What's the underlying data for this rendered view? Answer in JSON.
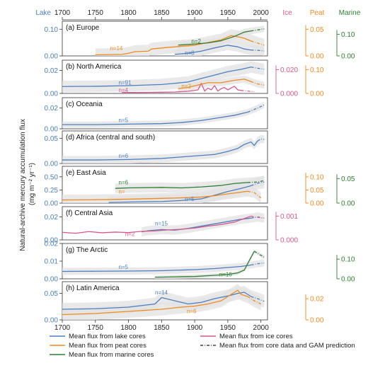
{
  "figure": {
    "top_axis": {
      "ticks": [
        "1700",
        "1750",
        "1800",
        "1850",
        "1900",
        "1950",
        "2000"
      ]
    },
    "bottom_axis": {
      "ticks": [
        "1700",
        "1750",
        "1800",
        "1850",
        "1900",
        "1950",
        "2000"
      ]
    },
    "header": {
      "lake": "Lake",
      "ice": "Ice",
      "peat": "Peat",
      "marine": "Marine"
    },
    "ylabel_line1": "Natural-archive mercury accumulation flux",
    "ylabel_line2": "(mg m⁻² yr⁻¹)",
    "colors": {
      "lake": "#4a7fbf",
      "peat": "#f08a1c",
      "marine": "#2e7d32",
      "ice": "#d9578a",
      "band": "#e2e2e2",
      "axis_lake": "#4a7fbf"
    },
    "legend": [
      {
        "id": "lake",
        "label": "Mean flux from lake cores",
        "color": "#4a7fbf",
        "style": "solid"
      },
      {
        "id": "ice",
        "label": "Mean flux from ice cores",
        "color": "#d9578a",
        "style": "solid"
      },
      {
        "id": "peat",
        "label": "Mean flux from peat cores",
        "color": "#f08a1c",
        "style": "solid"
      },
      {
        "id": "gam",
        "label": "Mean flux from core data and GAM prediction",
        "color": "#444444",
        "style": "dashdot"
      },
      {
        "id": "marine",
        "label": "Mean flux from marine cores",
        "color": "#2e7d32",
        "style": "solid"
      }
    ]
  },
  "chart_data": [
    {
      "type": "line",
      "title": "(a) Europe",
      "xlim": [
        1700,
        2010
      ],
      "lake_axis": {
        "ylim": [
          0,
          0.13
        ],
        "ticks": [
          "0.00",
          "0.10"
        ],
        "tick_values": [
          0,
          0.1
        ]
      },
      "right_axes": [
        {
          "archive": "peat",
          "ylim": [
            0,
            0.065
          ],
          "ticks": [
            "0.00",
            "0.05"
          ],
          "tick_values": [
            0,
            0.05
          ]
        },
        {
          "archive": "marine",
          "ylim": [
            0,
            0.16
          ],
          "ticks": [
            "0.00",
            "0.10"
          ],
          "tick_values": [
            0,
            0.1
          ]
        }
      ],
      "annotations": [
        {
          "text": "n=14",
          "archive": "peat",
          "x": 1772,
          "y": 0.021
        },
        {
          "text": "n=2",
          "archive": "marine",
          "x": 1895,
          "y": 0.048
        },
        {
          "text": "n=8",
          "archive": "lake",
          "x": 1885,
          "y": 0.004
        }
      ],
      "series": [
        {
          "archive": "lake",
          "x": [
            1870,
            1890,
            1910,
            1930,
            1950,
            1965,
            1975,
            1985,
            1995,
            2005
          ],
          "y": [
            0.006,
            0.01,
            0.018,
            0.03,
            0.04,
            0.034,
            0.026,
            0.022,
            0.021,
            0.018
          ],
          "band": 0.018
        },
        {
          "archive": "peat",
          "x": [
            1750,
            1790,
            1800,
            1810,
            1830,
            1835,
            1860,
            1880,
            1900,
            1920,
            1940,
            1955,
            1965,
            1975,
            1985,
            1995,
            2005
          ],
          "y": [
            0.002,
            0.003,
            0.005,
            0.008,
            0.009,
            0.013,
            0.016,
            0.018,
            0.02,
            0.025,
            0.03,
            0.038,
            0.036,
            0.033,
            0.028,
            0.024,
            0.02
          ],
          "band": 0.012
        },
        {
          "archive": "marine",
          "x": [
            1875,
            1900,
            1920,
            1940,
            1960,
            1975,
            1985,
            1995,
            2005
          ],
          "y": [
            0.05,
            0.055,
            0.06,
            0.07,
            0.09,
            0.11,
            0.115,
            0.12,
            0.125
          ],
          "band": 0.015
        }
      ]
    },
    {
      "type": "line",
      "title": "(b) North America",
      "xlim": [
        1700,
        2010
      ],
      "lake_axis": {
        "ylim": [
          0,
          0.029
        ],
        "ticks": [
          "0.00",
          "0.02"
        ],
        "tick_values": [
          0,
          0.02
        ]
      },
      "right_axes": [
        {
          "archive": "ice",
          "ylim": [
            0,
            0.028
          ],
          "ticks": [
            "0.000",
            "0.020"
          ],
          "tick_values": [
            0,
            0.02
          ]
        },
        {
          "archive": "peat",
          "ylim": [
            0,
            0.14
          ],
          "ticks": [
            "0.00",
            "0.10"
          ],
          "tick_values": [
            0,
            0.1
          ]
        }
      ],
      "annotations": [
        {
          "text": "n=91",
          "archive": "lake",
          "x": 1785,
          "y": 0.0078
        },
        {
          "text": "n=4",
          "archive": "ice",
          "x": 1785,
          "y": 0.0012
        },
        {
          "text": "n=2",
          "archive": "peat",
          "x": 1880,
          "y": 0.0046
        }
      ],
      "series": [
        {
          "archive": "lake",
          "x": [
            1700,
            1750,
            1800,
            1850,
            1870,
            1890,
            1910,
            1930,
            1950,
            1970,
            1985,
            1995,
            2005
          ],
          "y": [
            0.006,
            0.0062,
            0.0068,
            0.0078,
            0.0088,
            0.01,
            0.013,
            0.016,
            0.019,
            0.021,
            0.023,
            0.022,
            0.021
          ],
          "band": 0.005
        },
        {
          "archive": "ice",
          "x": [
            1790,
            1810,
            1830,
            1850,
            1870,
            1890,
            1905,
            1910,
            1915,
            1920,
            1925,
            1930,
            1935,
            1940,
            1945,
            1950,
            1955,
            1960,
            1965,
            1970,
            1980,
            1990
          ],
          "y": [
            0.0008,
            0.0008,
            0.0009,
            0.001,
            0.0012,
            0.0018,
            0.003,
            0.0085,
            0.002,
            0.0045,
            0.003,
            0.0065,
            0.002,
            0.004,
            0.005,
            0.003,
            0.0045,
            0.006,
            0.003,
            0.0025,
            0.002,
            0.0015
          ],
          "band": 0
        },
        {
          "archive": "peat",
          "x": [
            1875,
            1890,
            1900,
            1920,
            1940,
            1960,
            1975,
            1985,
            1995,
            2005
          ],
          "y": [
            0.02,
            0.025,
            0.032,
            0.045,
            0.045,
            0.055,
            0.06,
            0.05,
            0.04,
            0.035
          ],
          "band": 0.015
        }
      ]
    },
    {
      "type": "line",
      "title": "(c) Oceania",
      "xlim": [
        1700,
        2010
      ],
      "lake_axis": {
        "ylim": [
          0,
          0.03
        ],
        "ticks": [
          "0.00",
          "0.02"
        ],
        "tick_values": [
          0,
          0.02
        ]
      },
      "right_axes": [],
      "annotations": [
        {
          "text": "n=5",
          "archive": "lake",
          "x": 1785,
          "y": 0.0065
        }
      ],
      "series": [
        {
          "archive": "lake",
          "x": [
            1700,
            1750,
            1800,
            1850,
            1880,
            1910,
            1940,
            1960,
            1980,
            1995,
            2005
          ],
          "y": [
            0.004,
            0.004,
            0.0045,
            0.005,
            0.006,
            0.008,
            0.011,
            0.013,
            0.016,
            0.02,
            0.023
          ],
          "band": 0.003
        }
      ]
    },
    {
      "type": "line",
      "title": "(d) Africa (central and south)",
      "xlim": [
        1700,
        2010
      ],
      "lake_axis": {
        "ylim": [
          0,
          0.065
        ],
        "ticks": [
          "0.00",
          "0.05"
        ],
        "tick_values": [
          0,
          0.05
        ]
      },
      "right_axes": [],
      "annotations": [
        {
          "text": "n=6",
          "archive": "lake",
          "x": 1785,
          "y": 0.011
        }
      ],
      "series": [
        {
          "archive": "lake",
          "x": [
            1700,
            1750,
            1800,
            1850,
            1900,
            1930,
            1950,
            1965,
            1975,
            1985,
            1990,
            1995,
            2000,
            2005
          ],
          "y": [
            0.007,
            0.007,
            0.008,
            0.01,
            0.015,
            0.018,
            0.024,
            0.03,
            0.038,
            0.043,
            0.036,
            0.045,
            0.049,
            0.048
          ],
          "band": 0.008
        }
      ]
    },
    {
      "type": "line",
      "title": "(e) East Asia",
      "xlim": [
        1700,
        2010
      ],
      "lake_axis": {
        "ylim": [
          0,
          0.7
        ],
        "ticks": [
          "0.00",
          "0.25",
          "0.50"
        ],
        "tick_values": [
          0,
          0.25,
          0.5
        ]
      },
      "right_axes": [
        {
          "archive": "peat",
          "ylim": [
            0,
            0.14
          ],
          "ticks": [
            "0.00",
            "0.05",
            "0.10"
          ],
          "tick_values": [
            0,
            0.05,
            0.1
          ]
        },
        {
          "archive": "marine",
          "ylim": [
            0,
            0.075
          ],
          "ticks": [
            "0.00",
            "0.05"
          ],
          "tick_values": [
            0,
            0.05
          ]
        }
      ],
      "annotations": [
        {
          "text": "n=6",
          "archive": "marine",
          "x": 1785,
          "y": 0.36
        },
        {
          "text": "n=",
          "archive": "peat",
          "x": 1785,
          "y": 0.18
        },
        {
          "text": "n=5",
          "archive": "lake",
          "x": 1885,
          "y": 0.04
        }
      ],
      "series": [
        {
          "archive": "lake",
          "x": [
            1770,
            1800,
            1850,
            1880,
            1910,
            1930,
            1950,
            1970,
            1985,
            1995,
            2005
          ],
          "y": [
            0.01,
            0.02,
            0.03,
            0.05,
            0.08,
            0.15,
            0.22,
            0.28,
            0.33,
            0.38,
            0.4
          ],
          "band": 0.12
        },
        {
          "archive": "peat",
          "x": [
            1700,
            1750,
            1800,
            1850,
            1880,
            1910,
            1930,
            1950,
            1965,
            1980,
            1990,
            2000
          ],
          "y": [
            0.012,
            0.013,
            0.015,
            0.018,
            0.02,
            0.023,
            0.028,
            0.035,
            0.04,
            0.045,
            0.04,
            0.02
          ],
          "band": 0.02
        },
        {
          "archive": "marine",
          "x": [
            1780,
            1800,
            1850,
            1880,
            1910,
            1940,
            1960,
            1980,
            1995,
            2005
          ],
          "y": [
            0.03,
            0.031,
            0.032,
            0.031,
            0.033,
            0.036,
            0.04,
            0.042,
            0.043,
            0.046
          ],
          "band": 0.01
        }
      ]
    },
    {
      "type": "line",
      "title": "(f) Central Asia",
      "xlim": [
        1700,
        2010
      ],
      "lake_axis": {
        "ylim": [
          0,
          0.029
        ],
        "ticks": [
          "0.00",
          "0.02"
        ],
        "tick_values": [
          0,
          0.02
        ]
      },
      "right_axes": [
        {
          "archive": "ice",
          "ylim": [
            0,
            0.0014
          ],
          "ticks": [
            "0.000",
            "0.001"
          ],
          "tick_values": [
            0,
            0.001
          ]
        }
      ],
      "annotations": [
        {
          "text": "n=15",
          "archive": "lake",
          "x": 1840,
          "y": 0.0125
        },
        {
          "text": "n=2",
          "archive": "ice",
          "x": 1795,
          "y": 0.0035
        }
      ],
      "series": [
        {
          "archive": "lake",
          "x": [
            1820,
            1830,
            1850,
            1870,
            1890,
            1910,
            1930,
            1950,
            1970,
            1985,
            1995,
            2005
          ],
          "y": [
            0.007,
            0.008,
            0.009,
            0.0085,
            0.01,
            0.012,
            0.014,
            0.016,
            0.018,
            0.019,
            0.02,
            0.019
          ],
          "band": 0.004
        },
        {
          "archive": "ice",
          "x": [
            1700,
            1720,
            1740,
            1760,
            1780,
            1800,
            1820,
            1840,
            1860,
            1880,
            1900,
            1920,
            1940,
            1960,
            1975,
            1985,
            1995,
            2005
          ],
          "y": [
            0.00032,
            0.00028,
            0.00035,
            0.0003,
            0.00033,
            0.00031,
            0.00036,
            0.00038,
            0.00042,
            0.00045,
            0.0005,
            0.00058,
            0.00065,
            0.00075,
            0.0009,
            0.001,
            0.00095,
            0.00092
          ],
          "band": 0
        }
      ]
    },
    {
      "type": "line",
      "title": "(g) The Arctic",
      "xlim": [
        1700,
        2010
      ],
      "lake_axis": {
        "ylim": [
          0,
          0.02
        ],
        "ticks": [
          "0.00",
          "0.01",
          "0.02"
        ],
        "tick_values": [
          0,
          0.01,
          0.02
        ]
      },
      "right_axes": [
        {
          "archive": "marine",
          "ylim": [
            0,
            0.18
          ],
          "ticks": [
            "0.00",
            "0.10"
          ],
          "tick_values": [
            0,
            0.1
          ]
        }
      ],
      "annotations": [
        {
          "text": "n=5",
          "archive": "lake",
          "x": 1785,
          "y": 0.0057
        },
        {
          "text": "n=16",
          "archive": "marine",
          "x": 1937,
          "y": 0.0015
        }
      ],
      "series": [
        {
          "archive": "lake",
          "x": [
            1700,
            1750,
            1800,
            1850,
            1900,
            1930,
            1950,
            1970,
            1985,
            1995,
            2005
          ],
          "y": [
            0.0042,
            0.0043,
            0.0044,
            0.0046,
            0.0052,
            0.0058,
            0.0064,
            0.007,
            0.0078,
            0.0085,
            0.009
          ],
          "band": 0.002
        },
        {
          "archive": "marine",
          "x": [
            1840,
            1870,
            1900,
            1930,
            1950,
            1965,
            1975,
            1982,
            1990,
            2000,
            2005
          ],
          "y": [
            0.008,
            0.01,
            0.012,
            0.018,
            0.022,
            0.03,
            0.045,
            0.09,
            0.14,
            0.12,
            0.11
          ],
          "band": 0.01
        }
      ]
    },
    {
      "type": "line",
      "title": "(h) Latin America",
      "xlim": [
        1700,
        2010
      ],
      "lake_axis": {
        "ylim": [
          0,
          0.072
        ],
        "ticks": [
          "0.00",
          "0.05"
        ],
        "tick_values": [
          0,
          0.05
        ]
      },
      "right_axes": [
        {
          "archive": "peat",
          "ylim": [
            0,
            0.036
          ],
          "ticks": [
            "0.00",
            "0.02"
          ],
          "tick_values": [
            0,
            0.02
          ]
        }
      ],
      "annotations": [
        {
          "text": "n=14",
          "archive": "lake",
          "x": 1840,
          "y": 0.048
        },
        {
          "text": "n=6",
          "archive": "peat",
          "x": 1888,
          "y": 0.013
        }
      ],
      "series": [
        {
          "archive": "lake",
          "x": [
            1700,
            1750,
            1800,
            1840,
            1850,
            1870,
            1890,
            1910,
            1930,
            1950,
            1965,
            1975,
            1985,
            1995,
            2005
          ],
          "y": [
            0.02,
            0.021,
            0.024,
            0.03,
            0.042,
            0.036,
            0.03,
            0.033,
            0.04,
            0.045,
            0.05,
            0.052,
            0.044,
            0.04,
            0.035
          ],
          "band": 0.012
        },
        {
          "archive": "peat",
          "x": [
            1700,
            1750,
            1800,
            1850,
            1880,
            1900,
            1920,
            1940,
            1955,
            1965,
            1970,
            1980,
            1990,
            2000
          ],
          "y": [
            0.005,
            0.006,
            0.008,
            0.01,
            0.012,
            0.013,
            0.015,
            0.018,
            0.024,
            0.028,
            0.024,
            0.022,
            0.018,
            0.015
          ],
          "band": 0.006
        }
      ]
    }
  ]
}
